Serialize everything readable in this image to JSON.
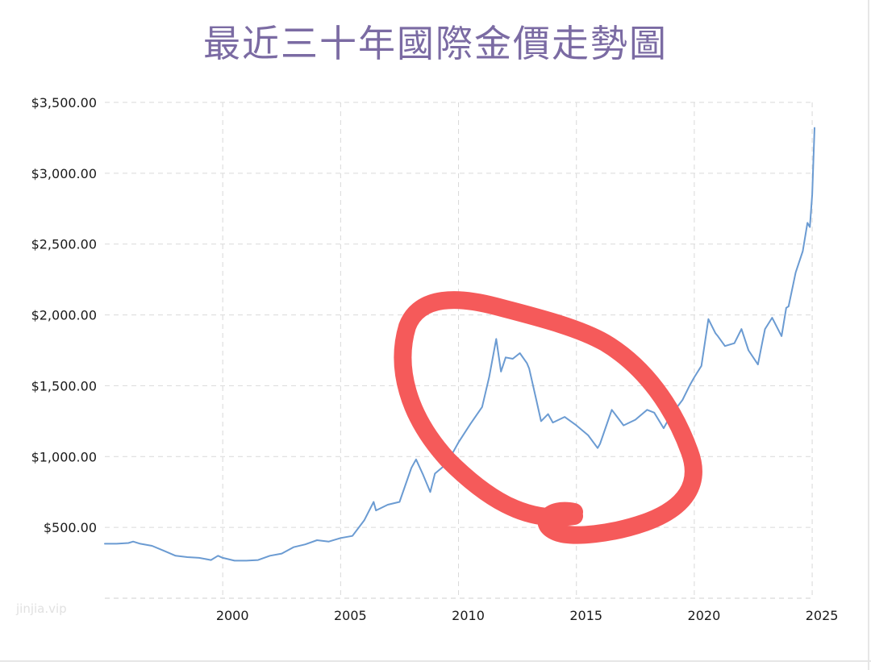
{
  "title": "最近三十年國際金價走勢圖",
  "watermark": "jinjia.vip",
  "chart_data": {
    "type": "line",
    "title": "最近三十年國際金價走勢圖",
    "xlabel": "",
    "ylabel": "",
    "xlim": [
      1995.0,
      2025.1
    ],
    "ylim": [
      0,
      3500
    ],
    "grid": true,
    "y_ticks": [
      {
        "value": 500,
        "label": "$500.00"
      },
      {
        "value": 1000,
        "label": "$1,000.00"
      },
      {
        "value": 1500,
        "label": "$1,500.00"
      },
      {
        "value": 2000,
        "label": "$2,000.00"
      },
      {
        "value": 2500,
        "label": "$2,500.00"
      },
      {
        "value": 3000,
        "label": "$3,000.00"
      },
      {
        "value": 3500,
        "label": "$3,500.00"
      }
    ],
    "x_ticks": [
      {
        "value": 2000,
        "label": "2000"
      },
      {
        "value": 2005,
        "label": "2005"
      },
      {
        "value": 2010,
        "label": "2010"
      },
      {
        "value": 2015,
        "label": "2015"
      },
      {
        "value": 2020,
        "label": "2020"
      },
      {
        "value": 2025,
        "label": "2025"
      }
    ],
    "series": [
      {
        "color": "#6b9bd2",
        "x": [
          1995.0,
          1995.5,
          1996.0,
          1996.2,
          1996.5,
          1997.0,
          1997.5,
          1998.0,
          1998.5,
          1999.0,
          1999.5,
          1999.8,
          2000.0,
          2000.5,
          2001.0,
          2001.5,
          2002.0,
          2002.5,
          2003.0,
          2003.5,
          2004.0,
          2004.5,
          2005.0,
          2005.5,
          2006.0,
          2006.4,
          2006.5,
          2007.0,
          2007.5,
          2008.0,
          2008.2,
          2008.5,
          2008.8,
          2009.0,
          2009.5,
          2010.0,
          2010.5,
          2011.0,
          2011.3,
          2011.6,
          2011.8,
          2012.0,
          2012.3,
          2012.6,
          2012.9,
          2013.0,
          2013.3,
          2013.5,
          2013.8,
          2014.0,
          2014.5,
          2015.0,
          2015.5,
          2015.9,
          2016.0,
          2016.5,
          2017.0,
          2017.5,
          2018.0,
          2018.3,
          2018.7,
          2019.0,
          2019.5,
          2019.8,
          2020.0,
          2020.3,
          2020.6,
          2020.9,
          2021.0,
          2021.3,
          2021.7,
          2022.0,
          2022.3,
          2022.7,
          2022.9,
          2023.0,
          2023.3,
          2023.7,
          2023.9,
          2024.0,
          2024.3,
          2024.6,
          2024.8,
          2024.9,
          2025.0,
          2025.1
        ],
        "values": [
          385,
          385,
          390,
          400,
          385,
          370,
          335,
          300,
          290,
          285,
          270,
          300,
          285,
          265,
          265,
          270,
          300,
          315,
          360,
          380,
          410,
          400,
          425,
          440,
          550,
          680,
          620,
          660,
          680,
          920,
          980,
          870,
          750,
          880,
          950,
          1100,
          1230,
          1350,
          1560,
          1830,
          1600,
          1700,
          1690,
          1730,
          1660,
          1620,
          1400,
          1250,
          1300,
          1240,
          1280,
          1220,
          1150,
          1060,
          1090,
          1330,
          1220,
          1260,
          1330,
          1310,
          1200,
          1290,
          1400,
          1500,
          1560,
          1640,
          1970,
          1870,
          1850,
          1780,
          1800,
          1900,
          1750,
          1650,
          1820,
          1900,
          1980,
          1850,
          2050,
          2060,
          2300,
          2450,
          2650,
          2620,
          2850,
          3320
        ]
      }
    ]
  }
}
